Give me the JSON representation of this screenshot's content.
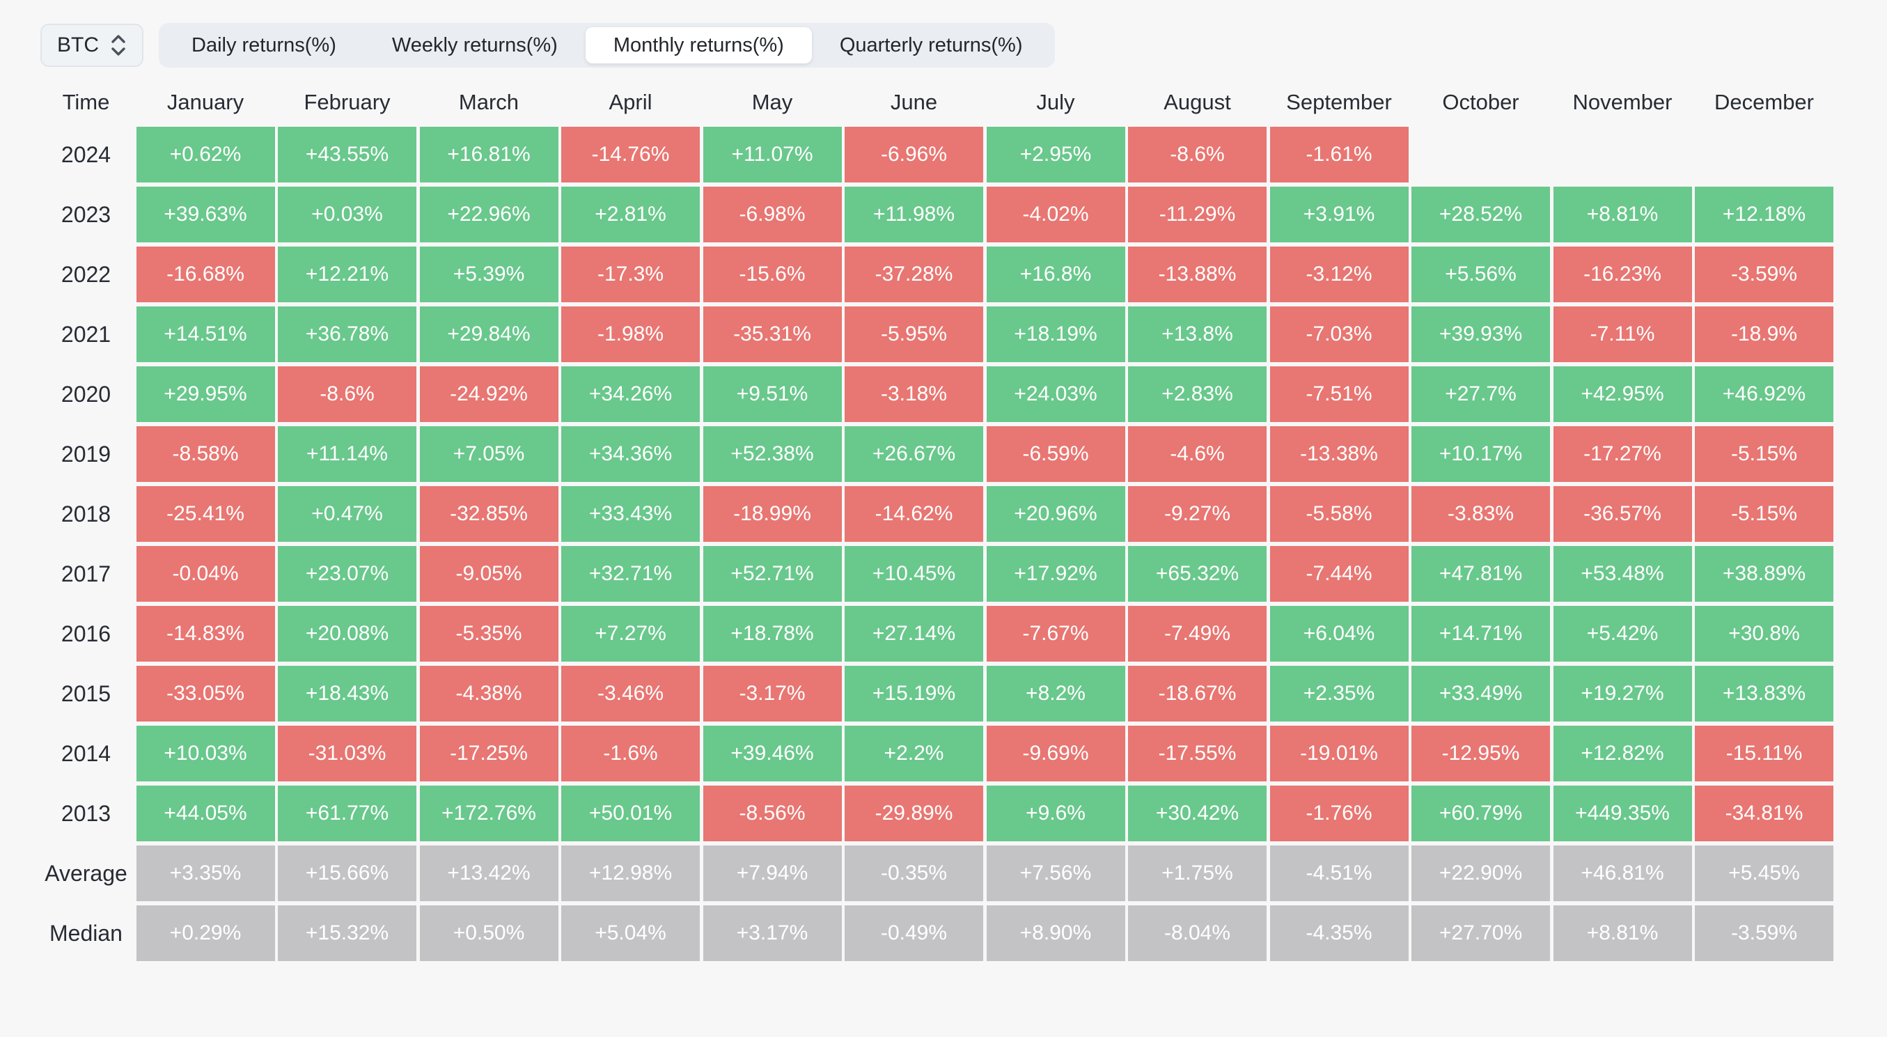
{
  "toolbar": {
    "asset_selector": {
      "label": "BTC"
    },
    "tabs": [
      {
        "label": "Daily returns(%)",
        "active": false
      },
      {
        "label": "Weekly returns(%)",
        "active": false
      },
      {
        "label": "Monthly returns(%)",
        "active": true
      },
      {
        "label": "Quarterly returns(%)",
        "active": false
      }
    ]
  },
  "table": {
    "time_header": "Time",
    "month_headers": [
      "January",
      "February",
      "March",
      "April",
      "May",
      "June",
      "July",
      "August",
      "September",
      "October",
      "November",
      "December"
    ],
    "rows": [
      {
        "label": "2024",
        "type": "year",
        "values": [
          "+0.62%",
          "+43.55%",
          "+16.81%",
          "-14.76%",
          "+11.07%",
          "-6.96%",
          "+2.95%",
          "-8.6%",
          "-1.61%",
          null,
          null,
          null
        ]
      },
      {
        "label": "2023",
        "type": "year",
        "values": [
          "+39.63%",
          "+0.03%",
          "+22.96%",
          "+2.81%",
          "-6.98%",
          "+11.98%",
          "-4.02%",
          "-11.29%",
          "+3.91%",
          "+28.52%",
          "+8.81%",
          "+12.18%"
        ]
      },
      {
        "label": "2022",
        "type": "year",
        "values": [
          "-16.68%",
          "+12.21%",
          "+5.39%",
          "-17.3%",
          "-15.6%",
          "-37.28%",
          "+16.8%",
          "-13.88%",
          "-3.12%",
          "+5.56%",
          "-16.23%",
          "-3.59%"
        ]
      },
      {
        "label": "2021",
        "type": "year",
        "values": [
          "+14.51%",
          "+36.78%",
          "+29.84%",
          "-1.98%",
          "-35.31%",
          "-5.95%",
          "+18.19%",
          "+13.8%",
          "-7.03%",
          "+39.93%",
          "-7.11%",
          "-18.9%"
        ]
      },
      {
        "label": "2020",
        "type": "year",
        "values": [
          "+29.95%",
          "-8.6%",
          "-24.92%",
          "+34.26%",
          "+9.51%",
          "-3.18%",
          "+24.03%",
          "+2.83%",
          "-7.51%",
          "+27.7%",
          "+42.95%",
          "+46.92%"
        ]
      },
      {
        "label": "2019",
        "type": "year",
        "values": [
          "-8.58%",
          "+11.14%",
          "+7.05%",
          "+34.36%",
          "+52.38%",
          "+26.67%",
          "-6.59%",
          "-4.6%",
          "-13.38%",
          "+10.17%",
          "-17.27%",
          "-5.15%"
        ]
      },
      {
        "label": "2018",
        "type": "year",
        "values": [
          "-25.41%",
          "+0.47%",
          "-32.85%",
          "+33.43%",
          "-18.99%",
          "-14.62%",
          "+20.96%",
          "-9.27%",
          "-5.58%",
          "-3.83%",
          "-36.57%",
          "-5.15%"
        ]
      },
      {
        "label": "2017",
        "type": "year",
        "values": [
          "-0.04%",
          "+23.07%",
          "-9.05%",
          "+32.71%",
          "+52.71%",
          "+10.45%",
          "+17.92%",
          "+65.32%",
          "-7.44%",
          "+47.81%",
          "+53.48%",
          "+38.89%"
        ]
      },
      {
        "label": "2016",
        "type": "year",
        "values": [
          "-14.83%",
          "+20.08%",
          "-5.35%",
          "+7.27%",
          "+18.78%",
          "+27.14%",
          "-7.67%",
          "-7.49%",
          "+6.04%",
          "+14.71%",
          "+5.42%",
          "+30.8%"
        ]
      },
      {
        "label": "2015",
        "type": "year",
        "values": [
          "-33.05%",
          "+18.43%",
          "-4.38%",
          "-3.46%",
          "-3.17%",
          "+15.19%",
          "+8.2%",
          "-18.67%",
          "+2.35%",
          "+33.49%",
          "+19.27%",
          "+13.83%"
        ]
      },
      {
        "label": "2014",
        "type": "year",
        "values": [
          "+10.03%",
          "-31.03%",
          "-17.25%",
          "-1.6%",
          "+39.46%",
          "+2.2%",
          "-9.69%",
          "-17.55%",
          "-19.01%",
          "-12.95%",
          "+12.82%",
          "-15.11%"
        ]
      },
      {
        "label": "2013",
        "type": "year",
        "values": [
          "+44.05%",
          "+61.77%",
          "+172.76%",
          "+50.01%",
          "-8.56%",
          "-29.89%",
          "+9.6%",
          "+30.42%",
          "-1.76%",
          "+60.79%",
          "+449.35%",
          "-34.81%"
        ]
      },
      {
        "label": "Average",
        "type": "summary",
        "values": [
          "+3.35%",
          "+15.66%",
          "+13.42%",
          "+12.98%",
          "+7.94%",
          "-0.35%",
          "+7.56%",
          "+1.75%",
          "-4.51%",
          "+22.90%",
          "+46.81%",
          "+5.45%"
        ]
      },
      {
        "label": "Median",
        "type": "summary",
        "values": [
          "+0.29%",
          "+15.32%",
          "+0.50%",
          "+5.04%",
          "+3.17%",
          "-0.49%",
          "+8.90%",
          "-8.04%",
          "-4.35%",
          "+27.70%",
          "+8.81%",
          "-3.59%"
        ]
      }
    ]
  },
  "colors": {
    "positive": "#69c88c",
    "negative": "#e87672",
    "summary": "#c3c3c5",
    "background": "#f7f7f8"
  }
}
